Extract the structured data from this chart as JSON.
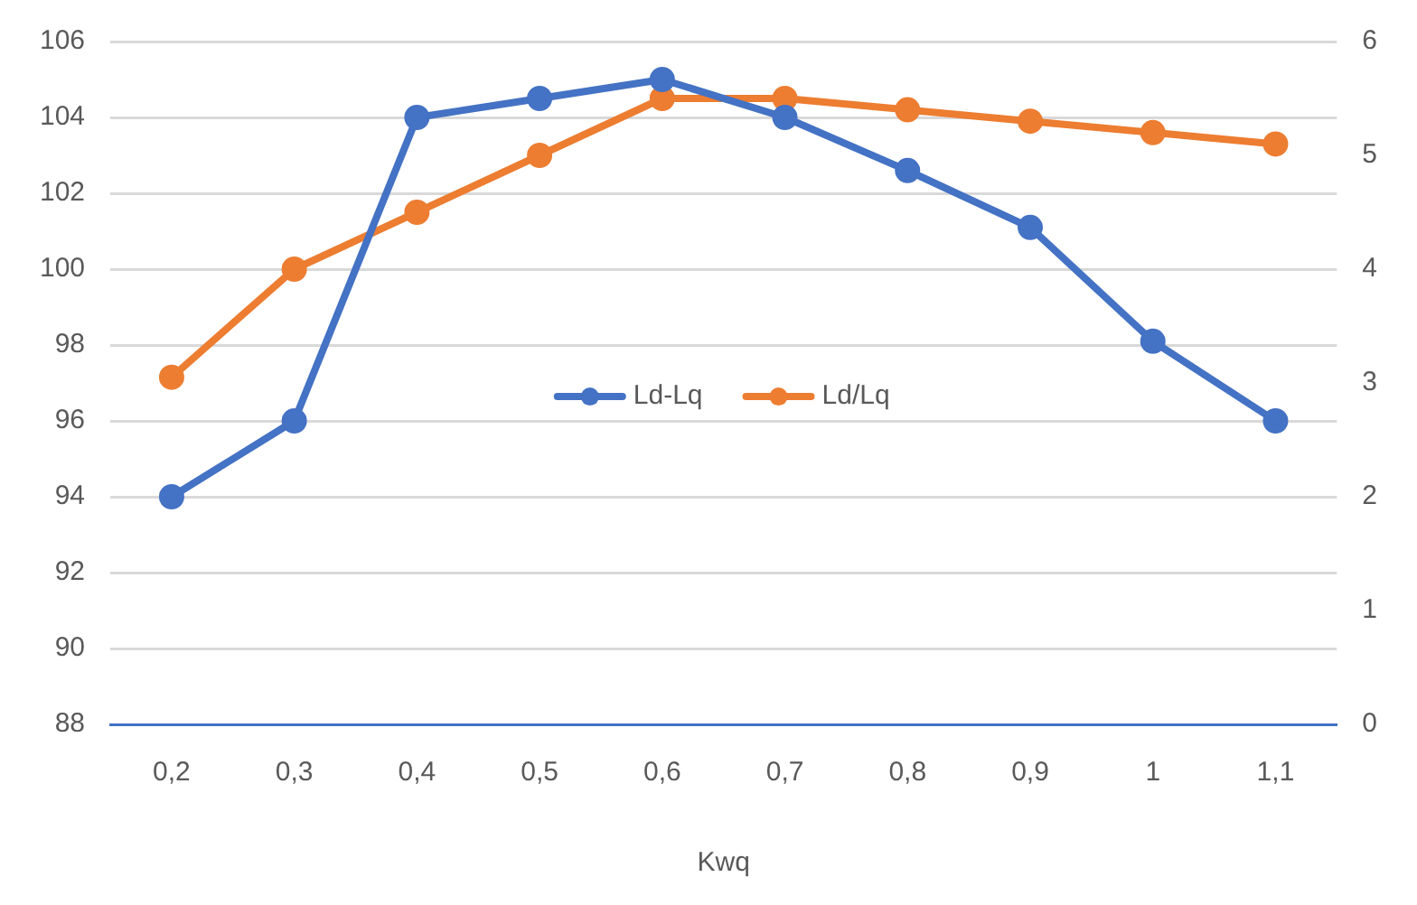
{
  "chart_data": {
    "type": "line",
    "xlabel": "Kwq",
    "categories": [
      "0,2",
      "0,3",
      "0,4",
      "0,5",
      "0,6",
      "0,7",
      "0,8",
      "0,9",
      "1",
      "1,1"
    ],
    "series": [
      {
        "name": "Ld-Lq",
        "color": "#4472c4",
        "values": [
          94,
          96,
          104,
          104.5,
          105,
          104,
          102.6,
          101.1,
          98.1,
          96
        ]
      },
      {
        "name": "Ld/Lq",
        "color": "#ed7d31",
        "axis": "y2",
        "values": [
          3.05,
          4.0,
          4.5,
          5.0,
          5.5,
          5.5,
          5.4,
          5.3,
          5.2,
          5.1
        ]
      }
    ],
    "ylim": [
      88,
      106
    ],
    "yticks": [
      88,
      90,
      92,
      94,
      96,
      98,
      100,
      102,
      104,
      106
    ],
    "y2lim": [
      0,
      6
    ],
    "y2ticks": [
      0,
      1,
      2,
      3,
      4,
      5,
      6
    ],
    "grid": "y",
    "legend": "center",
    "marker": "circle",
    "line_style": "solid"
  }
}
